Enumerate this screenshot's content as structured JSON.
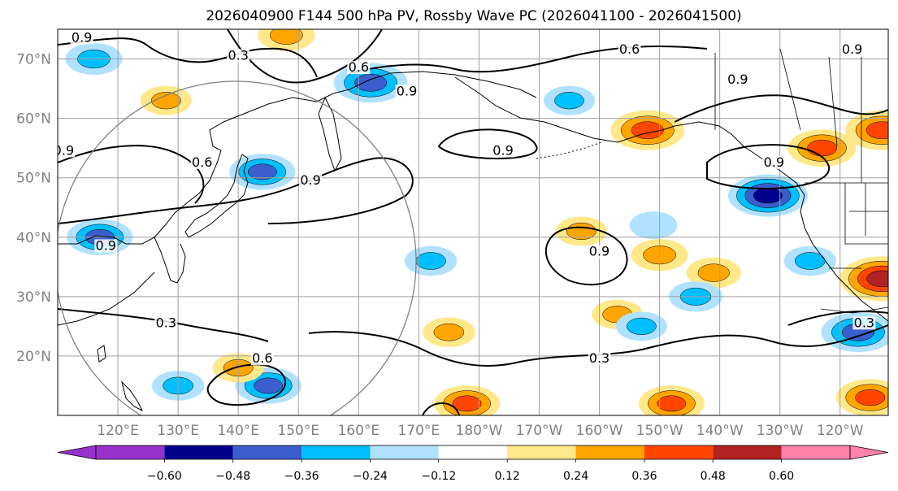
{
  "chart_data": {
    "type": "heatmap",
    "title": "2026040900 F144 500 hPa PV, Rossby Wave PC (2026041100 - 2026041500)",
    "xlabel": "",
    "ylabel": "",
    "xlim": [
      110,
      248
    ],
    "ylim": [
      10,
      75
    ],
    "lon_ticks": [
      {
        "value": 120,
        "label": "120°E"
      },
      {
        "value": 130,
        "label": "130°E"
      },
      {
        "value": 140,
        "label": "140°E"
      },
      {
        "value": 150,
        "label": "150°E"
      },
      {
        "value": 160,
        "label": "160°E"
      },
      {
        "value": 170,
        "label": "170°E"
      },
      {
        "value": 180,
        "label": "180°W"
      },
      {
        "value": 190,
        "label": "170°W"
      },
      {
        "value": 200,
        "label": "160°W"
      },
      {
        "value": 210,
        "label": "150°W"
      },
      {
        "value": 220,
        "label": "140°W"
      },
      {
        "value": 230,
        "label": "130°W"
      },
      {
        "value": 240,
        "label": "120°W"
      }
    ],
    "lat_ticks": [
      {
        "value": 20,
        "label": "20°N"
      },
      {
        "value": 30,
        "label": "30°N"
      },
      {
        "value": 40,
        "label": "40°N"
      },
      {
        "value": 50,
        "label": "50°N"
      },
      {
        "value": 60,
        "label": "60°N"
      },
      {
        "value": 70,
        "label": "70°N"
      }
    ],
    "colorbar": {
      "levels": [
        -0.6,
        -0.48,
        -0.36,
        -0.24,
        -0.12,
        0.12,
        0.24,
        0.36,
        0.48,
        0.6
      ],
      "labels": [
        "−0.60",
        "−0.48",
        "−0.36",
        "−0.24",
        "−0.12",
        "0.12",
        "0.24",
        "0.36",
        "0.48",
        "0.60"
      ],
      "colors": [
        "#9932cc",
        "#00008b",
        "#3a5fcd",
        "#00bfff",
        "#b0e2ff",
        "#ffffff",
        "#ffe88a",
        "#ffa500",
        "#ff4500",
        "#b22222",
        "#ff82ab"
      ],
      "extend": "both"
    },
    "anomalies": [
      {
        "name": "anom-alaska-positive",
        "lon": 208,
        "lat": 58,
        "value": 0.45
      },
      {
        "name": "anom-gulf-alaska-negative",
        "lon": 228,
        "lat": 47,
        "value": -0.5
      },
      {
        "name": "anom-bc-positive",
        "lon": 237,
        "lat": 55,
        "value": 0.4
      },
      {
        "name": "anom-nw-canada-positive",
        "lon": 247,
        "lat": 58,
        "value": 0.45
      },
      {
        "name": "anom-sw-us-positive",
        "lon": 247,
        "lat": 33,
        "value": 0.55
      },
      {
        "name": "anom-baja-negative",
        "lon": 243,
        "lat": 24,
        "value": -0.45
      },
      {
        "name": "anom-siberia-negative",
        "lon": 162,
        "lat": 66,
        "value": -0.45
      },
      {
        "name": "anom-nw-negative",
        "lon": 116,
        "lat": 70,
        "value": -0.3
      },
      {
        "name": "anom-sakhalin-negative",
        "lon": 144,
        "lat": 51,
        "value": -0.38
      },
      {
        "name": "anom-china-negative",
        "lon": 117,
        "lat": 40,
        "value": -0.38
      },
      {
        "name": "anom-east-pacific-positive",
        "lon": 245,
        "lat": 13,
        "value": 0.4
      },
      {
        "name": "anom-central-pacific-positive",
        "lon": 210,
        "lat": 37,
        "value": 0.3
      },
      {
        "name": "anom-pacific-positive-2",
        "lon": 219,
        "lat": 34,
        "value": 0.28
      },
      {
        "name": "anom-pacific-negative-2",
        "lon": 216,
        "lat": 30,
        "value": -0.27
      },
      {
        "name": "anom-pacific-negative-3",
        "lon": 235,
        "lat": 36,
        "value": -0.26
      },
      {
        "name": "anom-pacific-negative-4",
        "lon": 172,
        "lat": 36,
        "value": -0.26
      },
      {
        "name": "anom-pacific-positive-3",
        "lon": 212,
        "lat": 12,
        "value": 0.38
      },
      {
        "name": "anom-pacific-positive-4",
        "lon": 178,
        "lat": 12,
        "value": 0.38
      },
      {
        "name": "anom-pacific-positive-5",
        "lon": 175,
        "lat": 24,
        "value": 0.26
      },
      {
        "name": "anom-pacific-positive-6",
        "lon": 203,
        "lat": 27,
        "value": 0.25
      },
      {
        "name": "anom-pacific-negative-5",
        "lon": 207,
        "lat": 25,
        "value": -0.25
      },
      {
        "name": "anom-pacific-negative-6",
        "lon": 209,
        "lat": 42,
        "value": -0.22
      },
      {
        "name": "anom-japan-negative",
        "lon": 145,
        "lat": 15,
        "value": -0.38
      },
      {
        "name": "anom-japan-positive",
        "lon": 140,
        "lat": 18,
        "value": 0.25
      },
      {
        "name": "anom-pacific-positive-7",
        "lon": 197,
        "lat": 41,
        "value": 0.25
      },
      {
        "name": "anom-pacific-negative-7",
        "lon": 195,
        "lat": 63,
        "value": -0.25
      },
      {
        "name": "anom-pacific-negative-8",
        "lon": 130,
        "lat": 15,
        "value": -0.26
      },
      {
        "name": "anom-top-positive",
        "lon": 148,
        "lat": 74,
        "value": 0.3
      },
      {
        "name": "anom-sea-okhotsk-positive",
        "lon": 128,
        "lat": 63,
        "value": 0.25
      }
    ],
    "contour_labels": [
      {
        "text": "0.9",
        "lon": 114,
        "lat": 73
      },
      {
        "text": "0.3",
        "lon": 140,
        "lat": 70
      },
      {
        "text": "0.6",
        "lon": 160,
        "lat": 68
      },
      {
        "text": "0.9",
        "lon": 168,
        "lat": 64
      },
      {
        "text": "0.6",
        "lon": 205,
        "lat": 71
      },
      {
        "text": "0.9",
        "lon": 242,
        "lat": 71
      },
      {
        "text": "0.9",
        "lon": 223,
        "lat": 66
      },
      {
        "text": "0.9",
        "lon": 184,
        "lat": 54
      },
      {
        "text": "0.9",
        "lon": 229,
        "lat": 52
      },
      {
        "text": "0.9",
        "lon": 111,
        "lat": 54
      },
      {
        "text": "0.6",
        "lon": 134,
        "lat": 52
      },
      {
        "text": "0.9",
        "lon": 152,
        "lat": 49
      },
      {
        "text": "0.9",
        "lon": 118,
        "lat": 38
      },
      {
        "text": "0.9",
        "lon": 200,
        "lat": 37
      },
      {
        "text": "0.3",
        "lon": 128,
        "lat": 25
      },
      {
        "text": "0.6",
        "lon": 144,
        "lat": 19
      },
      {
        "text": "0.3",
        "lon": 200,
        "lat": 19
      },
      {
        "text": "0.3",
        "lon": 244,
        "lat": 25
      }
    ]
  }
}
